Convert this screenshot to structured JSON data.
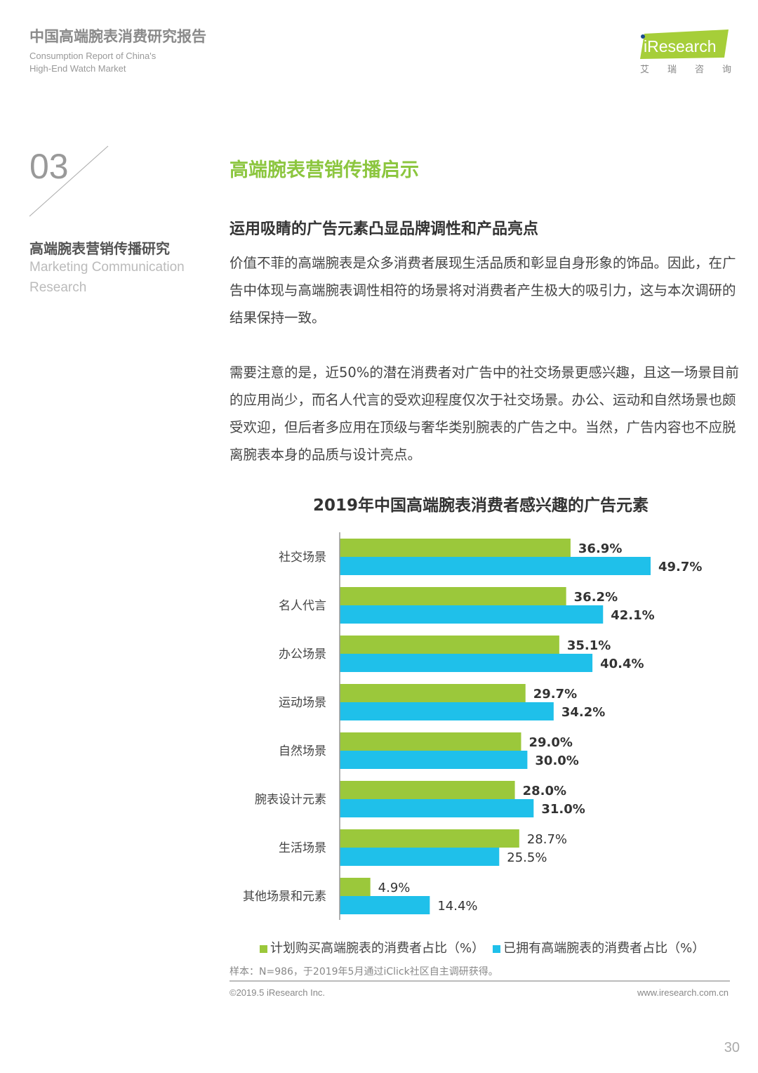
{
  "header": {
    "title": "中国高端腕表消费研究报告",
    "subtitle_line1": "Consumption Report of China's",
    "subtitle_line2": "High-End Watch Market",
    "logo_text": "iResearch",
    "logo_cn": [
      "艾",
      "瑞",
      "咨",
      "询"
    ]
  },
  "section": {
    "number": "03",
    "title_cn": "高端腕表营销传播研究",
    "title_en_line1": "Marketing Communication",
    "title_en_line2": "Research"
  },
  "main": {
    "title": "高端腕表营销传播启示",
    "subtitle": "运用吸睛的广告元素凸显品牌调性和产品亮点",
    "para1": "价值不菲的高端腕表是众多消费者展现生活品质和彰显自身形象的饰品。因此，在广告中体现与高端腕表调性相符的场景将对消费者产生极大的吸引力，这与本次调研的结果保持一致。",
    "para2": "需要注意的是，近50%的潜在消费者对广告中的社交场景更感兴趣，且这一场景目前的应用尚少，而名人代言的受欢迎程度仅次于社交场景。办公、运动和自然场景也颇受欢迎，但后者多应用在顶级与奢华类别腕表的广告之中。当然，广告内容也不应脱离腕表本身的品质与设计亮点。"
  },
  "chart_data": {
    "type": "bar",
    "orientation": "horizontal",
    "title": "2019年中国高端腕表消费者感兴趣的广告元素",
    "categories": [
      "社交场景",
      "名人代言",
      "办公场景",
      "运动场景",
      "自然场景",
      "腕表设计元素",
      "生活场景",
      "其他场景和元素"
    ],
    "series": [
      {
        "name": "计划购买高端腕表的消费者占比（%）",
        "color": "#9bc83b",
        "values": [
          36.9,
          36.2,
          35.1,
          29.7,
          29.0,
          28.0,
          28.7,
          4.9
        ]
      },
      {
        "name": "已拥有高端腕表的消费者占比（%）",
        "color": "#1fc0ea",
        "values": [
          49.7,
          42.1,
          40.4,
          34.2,
          30.0,
          31.0,
          25.5,
          14.4
        ]
      }
    ],
    "labels": [
      [
        "36.9%",
        "36.2%",
        "35.1%",
        "29.7%",
        "29.0%",
        "28.0%",
        "28.7%",
        "4.9%"
      ],
      [
        "49.7%",
        "42.1%",
        "40.4%",
        "34.2%",
        "30.0%",
        "31.0%",
        "25.5%",
        "14.4%"
      ]
    ],
    "xlim": [
      0,
      55
    ],
    "legend": "bottom"
  },
  "footer": {
    "note": "样本：N=986，于2019年5月通过iClick社区自主调研获得。",
    "copyright": "©2019.5 iResearch Inc.",
    "url": "www.iresearch.com.cn",
    "page": "30"
  }
}
